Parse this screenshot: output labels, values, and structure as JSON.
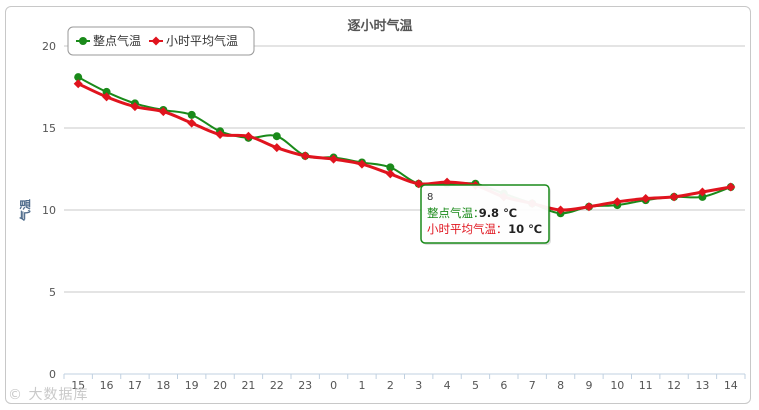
{
  "chart_data": {
    "type": "line",
    "title": "逐小时气温",
    "ylabel": "气温",
    "xlabel": "",
    "categories": [
      "15",
      "16",
      "17",
      "18",
      "19",
      "20",
      "21",
      "22",
      "23",
      "0",
      "1",
      "2",
      "3",
      "4",
      "5",
      "6",
      "7",
      "8",
      "9",
      "10",
      "11",
      "12",
      "13",
      "14"
    ],
    "ylim": [
      0,
      20
    ],
    "yticks": [
      0,
      5,
      10,
      15,
      20
    ],
    "grid": true,
    "legend_position": "top-left",
    "series": [
      {
        "name": "整点气温",
        "color": "#1a8a1a",
        "values": [
          18.1,
          17.2,
          16.5,
          16.1,
          15.8,
          14.8,
          14.4,
          14.5,
          13.3,
          13.2,
          12.9,
          12.6,
          11.6,
          11.6,
          11.6,
          11.0,
          10.4,
          9.8,
          10.2,
          10.3,
          10.6,
          10.8,
          10.8,
          11.4
        ]
      },
      {
        "name": "小时平均气温",
        "color": "#e0141e",
        "values": [
          17.7,
          16.9,
          16.3,
          16.0,
          15.3,
          14.6,
          14.5,
          13.8,
          13.3,
          13.1,
          12.8,
          12.2,
          11.6,
          11.7,
          11.5,
          10.8,
          10.4,
          10.0,
          10.2,
          10.5,
          10.7,
          10.8,
          11.1,
          11.4
        ]
      }
    ],
    "tooltip": {
      "category_index": 17,
      "header": "8",
      "rows": [
        {
          "label": "整点气温：",
          "value": "9.8 ℃",
          "color": "#1a8a1a"
        },
        {
          "label": "小时平均气温：",
          "value": "10 ℃",
          "color": "#e0141e"
        }
      ]
    }
  },
  "watermark": "© 大数据库"
}
